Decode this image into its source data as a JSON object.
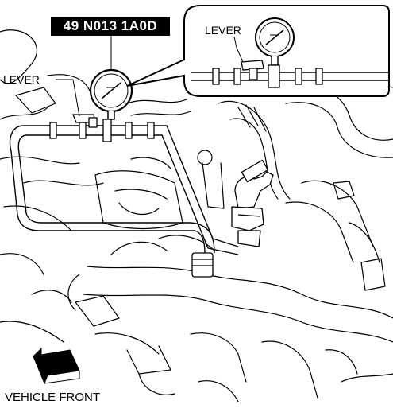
{
  "tool_label": "49 N013 1A0D",
  "lever_label_main": "LEVER",
  "lever_label_inset": "LEVER",
  "direction_label": "VEHICLE FRONT",
  "icons": {
    "direction_arrow": "arrow-down-left-icon",
    "gauge": "pressure-gauge-icon",
    "lever": "lever-handle-icon"
  }
}
